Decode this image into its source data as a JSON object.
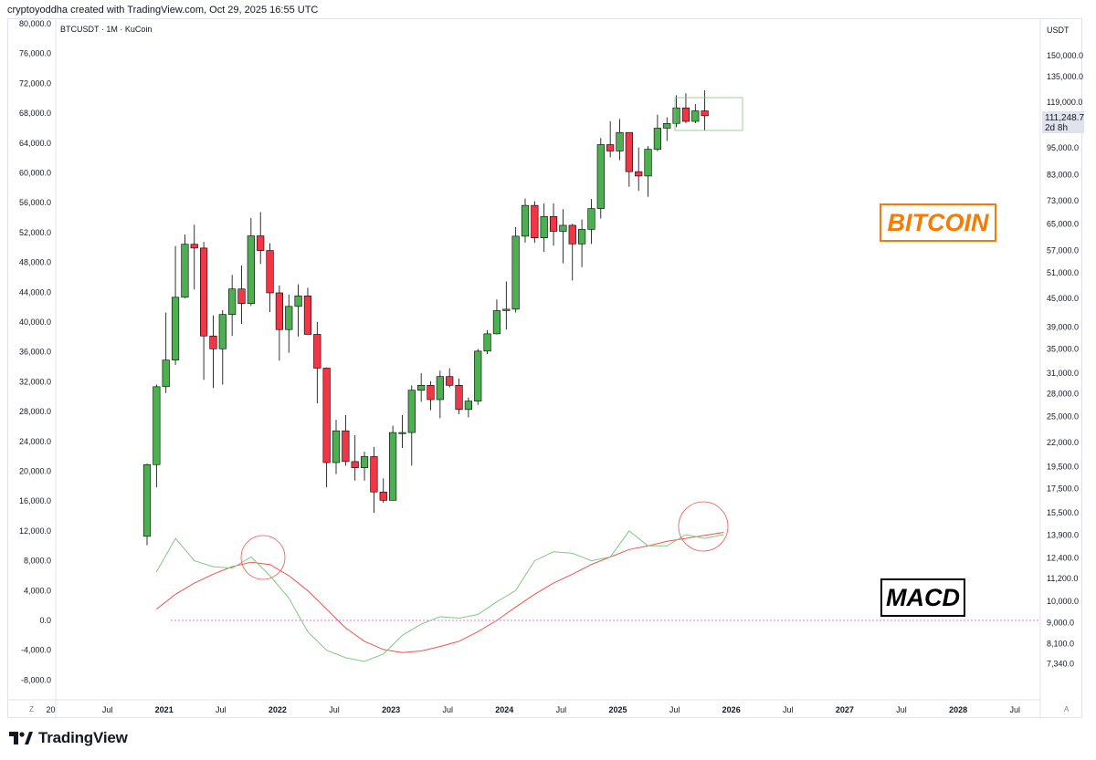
{
  "header": {
    "text": "cryptoyoddha created with TradingView.com, Oct 29, 2025 16:55 UTC"
  },
  "symbol": {
    "text": "BTCUSDT · 1M · KuCoin"
  },
  "currency": "USDT",
  "current_price": {
    "value": "111,248.7",
    "countdown": "2d 8h"
  },
  "labels": {
    "bitcoin": "BITCOIN",
    "macd": "MACD"
  },
  "footer": {
    "logo_text": "TradingView"
  },
  "corner": {
    "left": "Z",
    "right": "A"
  },
  "colors": {
    "up": "#4caf50",
    "down": "#f23645",
    "macd_line": "#81c784",
    "signal_line": "#ef5350",
    "accent_bitcoin": "#f57c00",
    "zero_line": "#e040fb",
    "axis_text": "#131722"
  },
  "chart_data": {
    "type": "candlestick",
    "timeframe": "1M",
    "left_axis_ticks": [
      "80,000.0",
      "76,000.0",
      "72,000.0",
      "68,000.0",
      "64,000.0",
      "60,000.0",
      "56,000.0",
      "52,000.0",
      "48,000.0",
      "44,000.0",
      "40,000.0",
      "36,000.0",
      "32,000.0",
      "28,000.0",
      "24,000.0",
      "20,000.0",
      "16,000.0",
      "12,000.0",
      "8,000.0",
      "4,000.0",
      "0.0",
      "-4,000.0",
      "-8,000.0"
    ],
    "right_axis_ticks": [
      "150,000.0",
      "135,000.0",
      "119,000.0",
      "95,000.0",
      "83,000.0",
      "73,000.0",
      "65,000.0",
      "57,000.0",
      "51,000.0",
      "45,000.0",
      "39,000.0",
      "35,000.0",
      "31,000.0",
      "28,000.0",
      "25,000.0",
      "22,000.0",
      "19,500.0",
      "17,500.0",
      "15,500.0",
      "13,900.0",
      "12,400.0",
      "11,200.0",
      "10,000.0",
      "9,000.0",
      "8,100.0",
      "7,340.0"
    ],
    "x_axis_ticks": [
      "20",
      "Jul",
      "2021",
      "Jul",
      "2022",
      "Jul",
      "2023",
      "Jul",
      "2024",
      "Jul",
      "2025",
      "Jul",
      "2026",
      "Jul",
      "2027",
      "Jul",
      "2028",
      "Jul"
    ],
    "y_scale": "log",
    "candles": [
      {
        "t": "2020-11",
        "o": 13800,
        "h": 19800,
        "l": 13200,
        "c": 19700
      },
      {
        "t": "2020-12",
        "o": 19700,
        "h": 29300,
        "l": 17600,
        "c": 29000
      },
      {
        "t": "2021-01",
        "o": 29000,
        "h": 41900,
        "l": 28100,
        "c": 33100
      },
      {
        "t": "2021-02",
        "o": 33100,
        "h": 58300,
        "l": 32300,
        "c": 45200
      },
      {
        "t": "2021-03",
        "o": 45200,
        "h": 61700,
        "l": 45000,
        "c": 58800
      },
      {
        "t": "2021-04",
        "o": 58800,
        "h": 64800,
        "l": 47000,
        "c": 57700
      },
      {
        "t": "2021-05",
        "o": 57700,
        "h": 59500,
        "l": 30000,
        "c": 37300
      },
      {
        "t": "2021-06",
        "o": 37300,
        "h": 41300,
        "l": 28800,
        "c": 35000
      },
      {
        "t": "2021-07",
        "o": 35000,
        "h": 42400,
        "l": 29300,
        "c": 41500
      },
      {
        "t": "2021-08",
        "o": 41500,
        "h": 50500,
        "l": 37300,
        "c": 47100
      },
      {
        "t": "2021-09",
        "o": 47100,
        "h": 52900,
        "l": 39600,
        "c": 43800
      },
      {
        "t": "2021-10",
        "o": 43800,
        "h": 67000,
        "l": 43300,
        "c": 61300
      },
      {
        "t": "2021-11",
        "o": 61300,
        "h": 69000,
        "l": 53300,
        "c": 57000
      },
      {
        "t": "2021-12",
        "o": 57000,
        "h": 59100,
        "l": 42000,
        "c": 46200
      },
      {
        "t": "2022-01",
        "o": 46200,
        "h": 47900,
        "l": 33000,
        "c": 38500
      },
      {
        "t": "2022-02",
        "o": 38500,
        "h": 45800,
        "l": 34300,
        "c": 43200
      },
      {
        "t": "2022-03",
        "o": 43200,
        "h": 48200,
        "l": 37200,
        "c": 45500
      },
      {
        "t": "2022-04",
        "o": 45500,
        "h": 47400,
        "l": 37700,
        "c": 37600
      },
      {
        "t": "2022-05",
        "o": 37600,
        "h": 40000,
        "l": 26700,
        "c": 31800
      },
      {
        "t": "2022-06",
        "o": 31800,
        "h": 31900,
        "l": 17600,
        "c": 19900
      },
      {
        "t": "2022-07",
        "o": 19900,
        "h": 24600,
        "l": 18800,
        "c": 23300
      },
      {
        "t": "2022-08",
        "o": 23300,
        "h": 25200,
        "l": 19600,
        "c": 20000
      },
      {
        "t": "2022-09",
        "o": 20000,
        "h": 22800,
        "l": 18200,
        "c": 19400
      },
      {
        "t": "2022-10",
        "o": 19400,
        "h": 21000,
        "l": 18200,
        "c": 20500
      },
      {
        "t": "2022-11",
        "o": 20500,
        "h": 21500,
        "l": 15500,
        "c": 17200
      },
      {
        "t": "2022-12",
        "o": 17200,
        "h": 18400,
        "l": 16300,
        "c": 16500
      },
      {
        "t": "2023-01",
        "o": 16500,
        "h": 23900,
        "l": 16500,
        "c": 23100
      },
      {
        "t": "2023-02",
        "o": 23100,
        "h": 25200,
        "l": 21400,
        "c": 23100
      },
      {
        "t": "2023-03",
        "o": 23100,
        "h": 29200,
        "l": 19600,
        "c": 28500
      },
      {
        "t": "2023-04",
        "o": 28500,
        "h": 31000,
        "l": 26900,
        "c": 29200
      },
      {
        "t": "2023-05",
        "o": 29200,
        "h": 29800,
        "l": 25800,
        "c": 27200
      },
      {
        "t": "2023-06",
        "o": 27200,
        "h": 31400,
        "l": 24800,
        "c": 30500
      },
      {
        "t": "2023-07",
        "o": 30500,
        "h": 31800,
        "l": 28900,
        "c": 29200
      },
      {
        "t": "2023-08",
        "o": 29200,
        "h": 30200,
        "l": 25300,
        "c": 25900
      },
      {
        "t": "2023-09",
        "o": 25900,
        "h": 27500,
        "l": 24900,
        "c": 27000
      },
      {
        "t": "2023-10",
        "o": 27000,
        "h": 35000,
        "l": 26500,
        "c": 34600
      },
      {
        "t": "2023-11",
        "o": 34600,
        "h": 38400,
        "l": 34100,
        "c": 37700
      },
      {
        "t": "2023-12",
        "o": 37700,
        "h": 44700,
        "l": 37600,
        "c": 42300
      },
      {
        "t": "2024-01",
        "o": 42300,
        "h": 48900,
        "l": 38500,
        "c": 42600
      },
      {
        "t": "2024-02",
        "o": 42600,
        "h": 64000,
        "l": 41900,
        "c": 61200
      },
      {
        "t": "2024-03",
        "o": 61200,
        "h": 73800,
        "l": 59300,
        "c": 71300
      },
      {
        "t": "2024-04",
        "o": 71300,
        "h": 72800,
        "l": 59200,
        "c": 60700
      },
      {
        "t": "2024-05",
        "o": 60700,
        "h": 72000,
        "l": 56600,
        "c": 67500
      },
      {
        "t": "2024-06",
        "o": 67500,
        "h": 72000,
        "l": 58400,
        "c": 62700
      },
      {
        "t": "2024-07",
        "o": 62700,
        "h": 70000,
        "l": 53500,
        "c": 64600
      },
      {
        "t": "2024-08",
        "o": 64600,
        "h": 65100,
        "l": 49100,
        "c": 58900
      },
      {
        "t": "2024-09",
        "o": 58900,
        "h": 66500,
        "l": 52500,
        "c": 63300
      },
      {
        "t": "2024-10",
        "o": 63300,
        "h": 73600,
        "l": 58900,
        "c": 70200
      },
      {
        "t": "2024-11",
        "o": 70200,
        "h": 99600,
        "l": 66800,
        "c": 96400
      },
      {
        "t": "2024-12",
        "o": 96400,
        "h": 108300,
        "l": 90500,
        "c": 93400
      },
      {
        "t": "2025-01",
        "o": 93400,
        "h": 109500,
        "l": 89200,
        "c": 102400
      },
      {
        "t": "2025-02",
        "o": 102400,
        "h": 102500,
        "l": 78200,
        "c": 84300
      },
      {
        "t": "2025-03",
        "o": 84300,
        "h": 95000,
        "l": 76600,
        "c": 82500
      },
      {
        "t": "2025-04",
        "o": 82500,
        "h": 95700,
        "l": 74400,
        "c": 94200
      },
      {
        "t": "2025-05",
        "o": 94200,
        "h": 111900,
        "l": 93300,
        "c": 104600
      },
      {
        "t": "2025-06",
        "o": 104600,
        "h": 110400,
        "l": 98200,
        "c": 107100
      },
      {
        "t": "2025-07",
        "o": 107100,
        "h": 123200,
        "l": 105100,
        "c": 115700
      },
      {
        "t": "2025-08",
        "o": 115700,
        "h": 124400,
        "l": 107300,
        "c": 108200
      },
      {
        "t": "2025-09",
        "o": 108200,
        "h": 117900,
        "l": 107200,
        "c": 114000
      },
      {
        "t": "2025-10",
        "o": 114000,
        "h": 126200,
        "l": 103500,
        "c": 111248.7
      }
    ],
    "macd": {
      "macd_line": [
        [
          0,
          6500
        ],
        [
          2,
          11000
        ],
        [
          4,
          8000
        ],
        [
          6,
          7200
        ],
        [
          8,
          7000
        ],
        [
          10,
          8500
        ],
        [
          12,
          6000
        ],
        [
          14,
          3000
        ],
        [
          16,
          -1500
        ],
        [
          18,
          -4000
        ],
        [
          20,
          -5000
        ],
        [
          22,
          -5500
        ],
        [
          24,
          -4500
        ],
        [
          26,
          -2000
        ],
        [
          28,
          -500
        ],
        [
          30,
          500
        ],
        [
          32,
          300
        ],
        [
          34,
          800
        ],
        [
          36,
          2500
        ],
        [
          38,
          4000
        ],
        [
          40,
          8000
        ],
        [
          42,
          9200
        ],
        [
          44,
          9000
        ],
        [
          46,
          8000
        ],
        [
          48,
          8500
        ],
        [
          50,
          12000
        ],
        [
          52,
          10000
        ],
        [
          54,
          10000
        ],
        [
          56,
          11500
        ],
        [
          58,
          11000
        ],
        [
          60,
          11500
        ]
      ],
      "signal_line": [
        [
          0,
          1500
        ],
        [
          2,
          3500
        ],
        [
          4,
          5000
        ],
        [
          6,
          6200
        ],
        [
          8,
          7200
        ],
        [
          10,
          7800
        ],
        [
          12,
          7500
        ],
        [
          14,
          6000
        ],
        [
          16,
          4000
        ],
        [
          18,
          1500
        ],
        [
          20,
          -1000
        ],
        [
          22,
          -2800
        ],
        [
          24,
          -3900
        ],
        [
          26,
          -4300
        ],
        [
          28,
          -4100
        ],
        [
          30,
          -3500
        ],
        [
          32,
          -2800
        ],
        [
          34,
          -1500
        ],
        [
          36,
          0
        ],
        [
          38,
          1800
        ],
        [
          40,
          3500
        ],
        [
          42,
          5000
        ],
        [
          44,
          6200
        ],
        [
          46,
          7500
        ],
        [
          48,
          8500
        ],
        [
          50,
          9500
        ],
        [
          52,
          10000
        ],
        [
          54,
          10600
        ],
        [
          56,
          11000
        ],
        [
          58,
          11400
        ],
        [
          60,
          11800
        ]
      ],
      "zero": 0
    },
    "annotations": [
      "BITCOIN",
      "MACD"
    ],
    "grid": false
  }
}
